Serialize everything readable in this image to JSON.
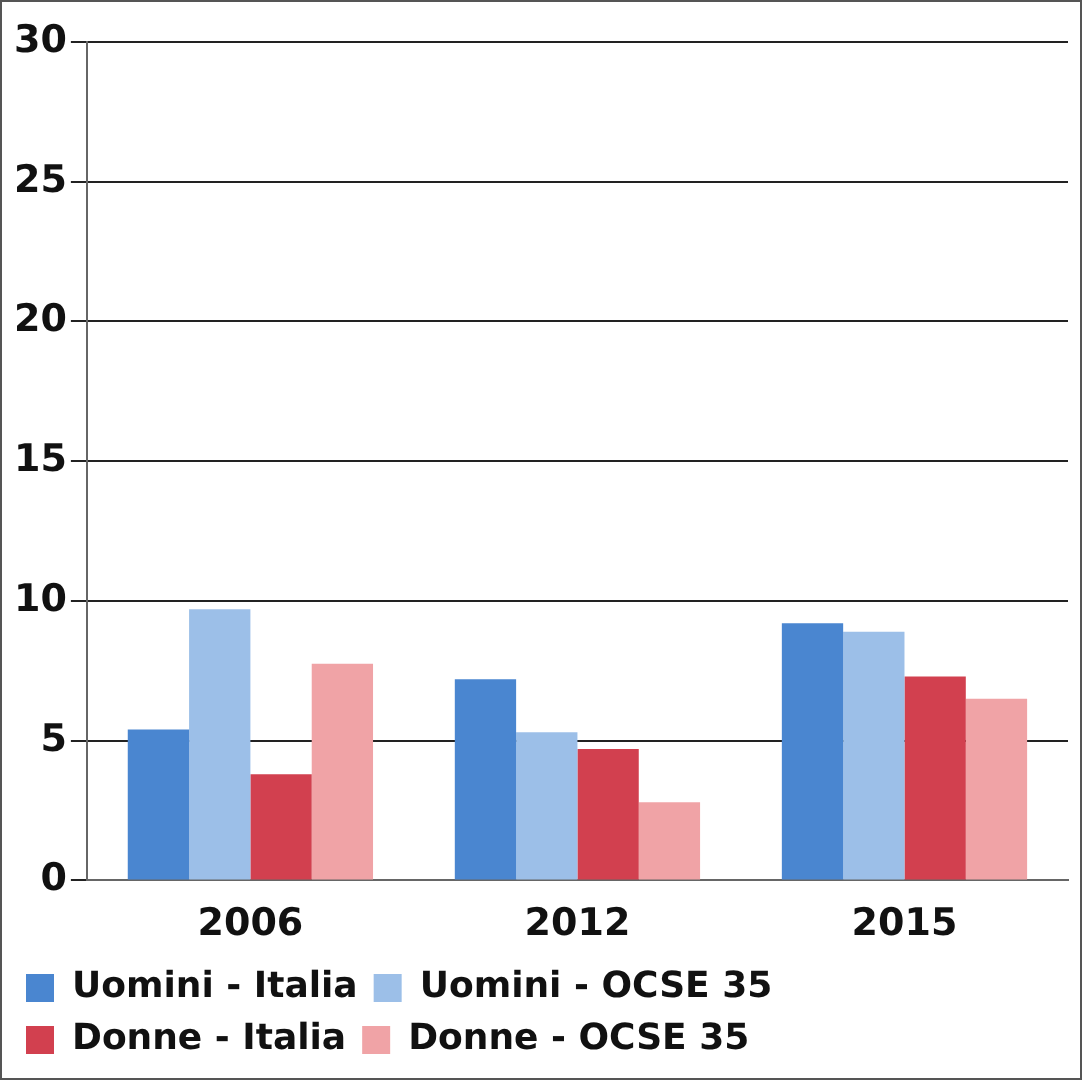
{
  "chart_data": {
    "type": "bar",
    "categories": [
      "2006",
      "2012",
      "2015"
    ],
    "series": [
      {
        "name": "Uomini - Italia",
        "color": "#4a86d0",
        "values": [
          5.4,
          7.2,
          9.2
        ]
      },
      {
        "name": "Uomini - OCSE 35",
        "color": "#9cbfe8",
        "values": [
          9.7,
          5.3,
          8.9
        ]
      },
      {
        "name": "Donne - Italia",
        "color": "#d2404f",
        "values": [
          3.8,
          4.7,
          7.3
        ]
      },
      {
        "name": "Donne - OCSE 35",
        "color": "#f0a3a6",
        "values": [
          7.75,
          2.8,
          6.5
        ]
      }
    ],
    "ylim": [
      0,
      30
    ],
    "yticks": [
      0,
      5,
      10,
      15,
      20,
      25,
      30
    ],
    "grid": "y",
    "legend": "bottom"
  }
}
